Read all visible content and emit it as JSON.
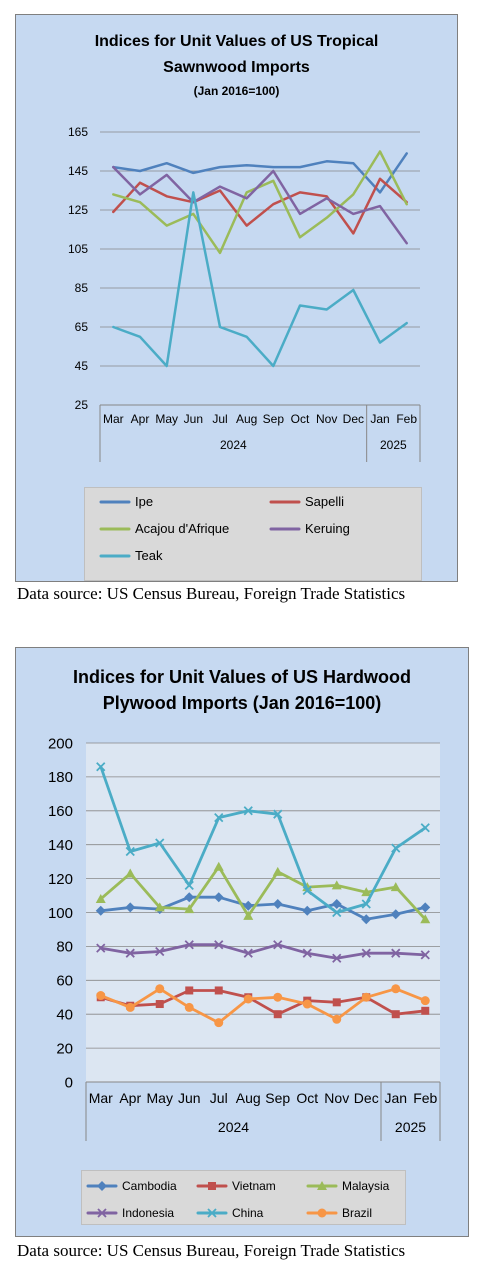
{
  "charts": [
    {
      "title_line1": "Indices for Unit Values of US Tropical",
      "title_line2": "Sawnwood Imports",
      "title_line3": "(Jan 2016=100)",
      "source": "Data source: US Census Bureau, Foreign Trade Statistics"
    },
    {
      "title_line1": "Indices for Unit Values of US Hardwood",
      "title_line2": "Plywood Imports (Jan 2016=100)",
      "source": "Data source: US Census Bureau, Foreign Trade Statistics"
    }
  ],
  "chart_data": [
    {
      "type": "line",
      "title": "Indices for Unit Values of US Tropical Sawnwood Imports (Jan 2016=100)",
      "categories": [
        "Mar",
        "Apr",
        "May",
        "Jun",
        "Jul",
        "Aug",
        "Sep",
        "Oct",
        "Nov",
        "Dec",
        "Jan",
        "Feb"
      ],
      "year_groups": [
        {
          "label": "2024",
          "count": 10
        },
        {
          "label": "2025",
          "count": 2
        }
      ],
      "ylim": [
        25,
        165
      ],
      "yticks": [
        25,
        45,
        65,
        85,
        105,
        125,
        145,
        165
      ],
      "grid": true,
      "markers": false,
      "legend_position": "bottom",
      "series": [
        {
          "name": "Ipe",
          "color": "#4f81bd",
          "values": [
            147,
            145,
            149,
            144,
            147,
            148,
            147,
            147,
            150,
            149,
            134,
            154
          ]
        },
        {
          "name": "Sapelli",
          "color": "#c0504d",
          "values": [
            124,
            139,
            132,
            129,
            135,
            117,
            128,
            134,
            132,
            113,
            141,
            129
          ]
        },
        {
          "name": "Acajou d'Afrique",
          "color": "#9bbb59",
          "values": [
            133,
            129,
            117,
            123,
            103,
            134,
            140,
            111,
            121,
            133,
            155,
            128
          ]
        },
        {
          "name": "Keruing",
          "color": "#8064a2",
          "values": [
            147,
            133,
            143,
            129,
            137,
            131,
            145,
            123,
            131,
            123,
            127,
            108
          ]
        },
        {
          "name": "Teak",
          "color": "#4bacc6",
          "values": [
            65,
            60,
            45,
            134,
            65,
            60,
            45,
            76,
            74,
            84,
            57,
            67
          ]
        }
      ]
    },
    {
      "type": "line",
      "title": "Indices for Unit Values of US Hardwood Plywood Imports (Jan 2016=100)",
      "categories": [
        "Mar",
        "Apr",
        "May",
        "Jun",
        "Jul",
        "Aug",
        "Sep",
        "Oct",
        "Nov",
        "Dec",
        "Jan",
        "Feb"
      ],
      "year_groups": [
        {
          "label": "2024",
          "count": 10
        },
        {
          "label": "2025",
          "count": 2
        }
      ],
      "ylim": [
        0,
        200
      ],
      "yticks": [
        0,
        20,
        40,
        60,
        80,
        100,
        120,
        140,
        160,
        180,
        200
      ],
      "grid": true,
      "markers": true,
      "legend_position": "bottom",
      "series": [
        {
          "name": "Cambodia",
          "color": "#4f81bd",
          "marker": "diamond",
          "values": [
            101,
            103,
            102,
            109,
            109,
            104,
            105,
            101,
            105,
            96,
            99,
            103
          ]
        },
        {
          "name": "Vietnam",
          "color": "#c0504d",
          "marker": "square",
          "values": [
            50,
            45,
            46,
            54,
            54,
            50,
            40,
            48,
            47,
            50,
            40,
            42
          ]
        },
        {
          "name": "Malaysia",
          "color": "#9bbb59",
          "marker": "triangle",
          "values": [
            108,
            123,
            103,
            102,
            127,
            98,
            124,
            115,
            116,
            112,
            115,
            96
          ]
        },
        {
          "name": "Indonesia",
          "color": "#8064a2",
          "marker": "x",
          "values": [
            79,
            76,
            77,
            81,
            81,
            76,
            81,
            76,
            73,
            76,
            76,
            75
          ]
        },
        {
          "name": "China",
          "color": "#4bacc6",
          "marker": "x",
          "values": [
            186,
            136,
            141,
            116,
            156,
            160,
            158,
            113,
            100,
            105,
            138,
            150
          ]
        },
        {
          "name": "Brazil",
          "color": "#f79646",
          "marker": "circle",
          "values": [
            51,
            44,
            55,
            44,
            35,
            49,
            50,
            46,
            37,
            50,
            55,
            48
          ]
        }
      ]
    }
  ]
}
